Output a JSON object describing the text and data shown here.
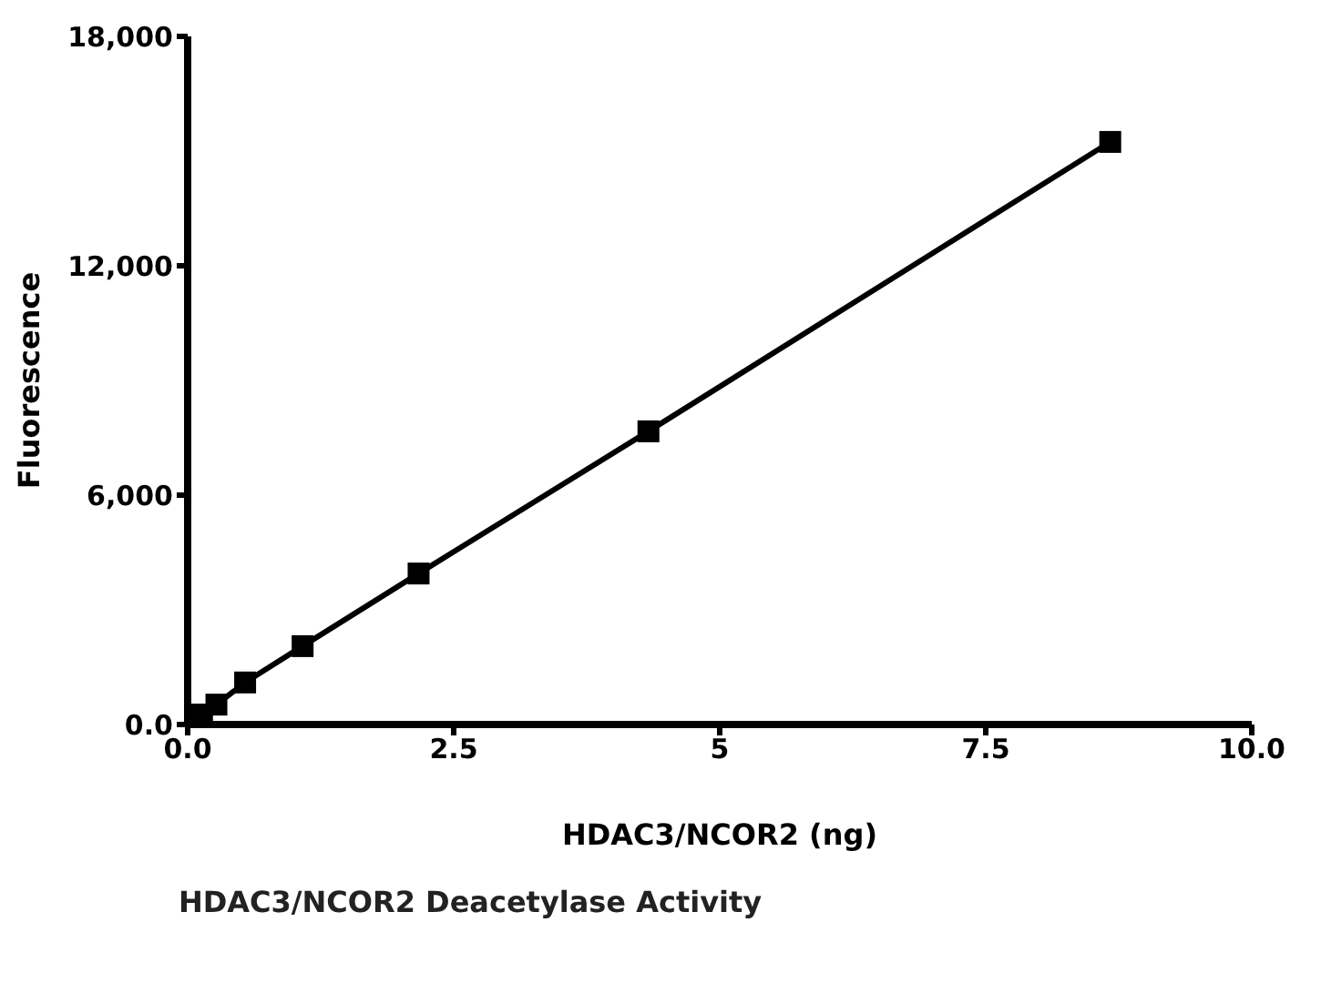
{
  "chart_data": {
    "type": "line",
    "title": "HDAC3/NCOR2 Deacetylase Activity",
    "xlabel": "HDAC3/NCOR2 (ng)",
    "ylabel": "Fluorescence",
    "x": [
      0,
      0.135,
      0.27,
      0.54,
      1.08,
      2.17,
      4.33,
      8.67
    ],
    "series": [
      {
        "color": "#000000",
        "values": [
          0,
          260,
          520,
          1100,
          2050,
          3950,
          7670,
          15240
        ]
      }
    ],
    "xlim": [
      0,
      10
    ],
    "xticks": [
      {
        "value": 0,
        "label": "0.0"
      },
      2.5,
      5,
      7.5,
      {
        "value": 10,
        "label": "10.0"
      }
    ],
    "ylim": [
      0,
      18000
    ],
    "yticks": [
      {
        "value": 0,
        "label": "0.0"
      },
      {
        "value": 6000,
        "label": "6,000"
      },
      {
        "value": 12000,
        "label": "12,000"
      },
      {
        "value": 18000,
        "label": "18,000"
      }
    ],
    "marker": "square",
    "line_style": "solid",
    "grid": false,
    "legend": false
  }
}
